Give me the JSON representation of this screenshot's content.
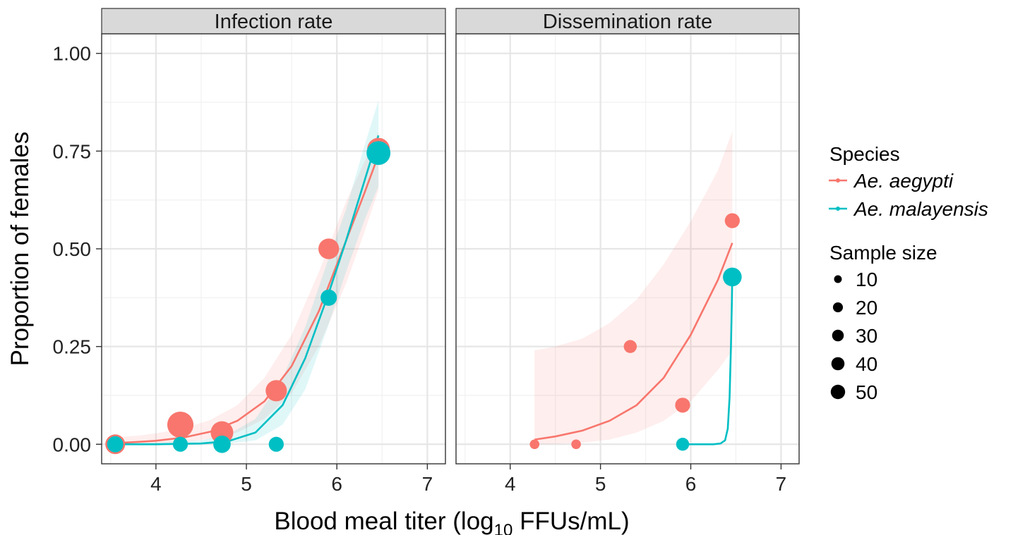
{
  "chart_data": {
    "type": "scatter",
    "xlabel_prefix": "Blood meal titer (log",
    "xlabel_sub": "10",
    "xlabel_suffix": " FFUs/mL)",
    "ylabel": "Proportion of females",
    "xlim": [
      3.4,
      7.2
    ],
    "ylim": [
      -0.05,
      1.05
    ],
    "x_ticks": [
      4,
      5,
      6,
      7
    ],
    "y_ticks": [
      0.0,
      0.25,
      0.5,
      0.75,
      1.0
    ],
    "x_tick_labels": [
      "4",
      "5",
      "6",
      "7"
    ],
    "y_tick_labels": [
      "0.00",
      "0.25",
      "0.50",
      "0.75",
      "1.00"
    ],
    "grid": true,
    "legend_position": "right",
    "legend": {
      "species_title": "Species",
      "species": [
        {
          "name": "Ae. aegypti",
          "color": "#F8766D"
        },
        {
          "name": "Ae. malayensis",
          "color": "#00BFC4"
        }
      ],
      "size_title": "Sample size",
      "sizes": [
        {
          "label": "10",
          "value": 10
        },
        {
          "label": "20",
          "value": 20
        },
        {
          "label": "30",
          "value": 30
        },
        {
          "label": "40",
          "value": 40
        },
        {
          "label": "50",
          "value": 50
        }
      ]
    },
    "panels": [
      {
        "title": "Infection rate",
        "series": [
          {
            "name": "Ae. aegypti",
            "color": "#F8766D",
            "points": [
              {
                "x": 3.55,
                "y": 0.0,
                "n": 25
              },
              {
                "x": 4.27,
                "y": 0.05,
                "n": 50
              },
              {
                "x": 4.73,
                "y": 0.03,
                "n": 35
              },
              {
                "x": 5.33,
                "y": 0.137,
                "n": 30
              },
              {
                "x": 5.91,
                "y": 0.5,
                "n": 28
              },
              {
                "x": 6.46,
                "y": 0.755,
                "n": 35
              }
            ],
            "fit": [
              [
                3.55,
                0.003
              ],
              [
                3.8,
                0.006
              ],
              [
                4.0,
                0.009
              ],
              [
                4.3,
                0.017
              ],
              [
                4.6,
                0.032
              ],
              [
                4.9,
                0.06
              ],
              [
                5.2,
                0.11
              ],
              [
                5.5,
                0.2
              ],
              [
                5.8,
                0.34
              ],
              [
                6.1,
                0.52
              ],
              [
                6.3,
                0.64
              ],
              [
                6.46,
                0.74
              ]
            ],
            "band_upper": [
              [
                3.55,
                0.018
              ],
              [
                3.8,
                0.022
              ],
              [
                4.0,
                0.028
              ],
              [
                4.3,
                0.04
              ],
              [
                4.6,
                0.062
              ],
              [
                4.9,
                0.1
              ],
              [
                5.2,
                0.17
              ],
              [
                5.5,
                0.28
              ],
              [
                5.8,
                0.44
              ],
              [
                6.1,
                0.62
              ],
              [
                6.3,
                0.72
              ],
              [
                6.46,
                0.8
              ]
            ],
            "band_lower": [
              [
                3.55,
                0.0
              ],
              [
                3.8,
                0.001
              ],
              [
                4.0,
                0.002
              ],
              [
                4.3,
                0.005
              ],
              [
                4.6,
                0.014
              ],
              [
                4.9,
                0.03
              ],
              [
                5.2,
                0.065
              ],
              [
                5.5,
                0.13
              ],
              [
                5.8,
                0.25
              ],
              [
                6.1,
                0.41
              ],
              [
                6.3,
                0.54
              ],
              [
                6.46,
                0.65
              ]
            ]
          },
          {
            "name": "Ae. malayensis",
            "color": "#00BFC4",
            "points": [
              {
                "x": 3.55,
                "y": 0.0,
                "n": 15
              },
              {
                "x": 4.27,
                "y": 0.0,
                "n": 12
              },
              {
                "x": 4.73,
                "y": 0.0,
                "n": 18
              },
              {
                "x": 5.33,
                "y": 0.0,
                "n": 12
              },
              {
                "x": 5.91,
                "y": 0.375,
                "n": 15
              },
              {
                "x": 6.46,
                "y": 0.745,
                "n": 40
              }
            ],
            "fit": [
              [
                3.55,
                0.0
              ],
              [
                4.0,
                0.0
              ],
              [
                4.5,
                0.002
              ],
              [
                4.8,
                0.008
              ],
              [
                5.1,
                0.03
              ],
              [
                5.4,
                0.1
              ],
              [
                5.65,
                0.22
              ],
              [
                5.9,
                0.38
              ],
              [
                6.1,
                0.52
              ],
              [
                6.3,
                0.67
              ],
              [
                6.46,
                0.79
              ]
            ],
            "band_upper": [
              [
                3.55,
                0.004
              ],
              [
                4.0,
                0.005
              ],
              [
                4.5,
                0.01
              ],
              [
                4.8,
                0.025
              ],
              [
                5.1,
                0.065
              ],
              [
                5.4,
                0.17
              ],
              [
                5.65,
                0.3
              ],
              [
                5.9,
                0.47
              ],
              [
                6.1,
                0.6
              ],
              [
                6.3,
                0.76
              ],
              [
                6.46,
                0.88
              ]
            ],
            "band_lower": [
              [
                3.55,
                0.0
              ],
              [
                4.0,
                0.0
              ],
              [
                4.5,
                0.0
              ],
              [
                4.8,
                0.002
              ],
              [
                5.1,
                0.01
              ],
              [
                5.4,
                0.05
              ],
              [
                5.65,
                0.14
              ],
              [
                5.9,
                0.3
              ],
              [
                6.1,
                0.44
              ],
              [
                6.3,
                0.57
              ],
              [
                6.46,
                0.66
              ]
            ]
          }
        ]
      },
      {
        "title": "Dissemination rate",
        "series": [
          {
            "name": "Ae. aegypti",
            "color": "#F8766D",
            "points": [
              {
                "x": 4.27,
                "y": 0.0,
                "n": 3
              },
              {
                "x": 4.73,
                "y": 0.0,
                "n": 3
              },
              {
                "x": 5.33,
                "y": 0.25,
                "n": 8
              },
              {
                "x": 5.91,
                "y": 0.1,
                "n": 12
              },
              {
                "x": 6.46,
                "y": 0.572,
                "n": 12
              }
            ],
            "fit": [
              [
                4.27,
                0.012
              ],
              [
                4.5,
                0.02
              ],
              [
                4.8,
                0.035
              ],
              [
                5.1,
                0.06
              ],
              [
                5.4,
                0.1
              ],
              [
                5.7,
                0.17
              ],
              [
                6.0,
                0.28
              ],
              [
                6.3,
                0.42
              ],
              [
                6.46,
                0.515
              ]
            ],
            "band_upper": [
              [
                4.27,
                0.24
              ],
              [
                4.5,
                0.25
              ],
              [
                4.8,
                0.27
              ],
              [
                5.1,
                0.31
              ],
              [
                5.4,
                0.37
              ],
              [
                5.7,
                0.46
              ],
              [
                6.0,
                0.57
              ],
              [
                6.3,
                0.7
              ],
              [
                6.46,
                0.8
              ]
            ],
            "band_lower": [
              [
                4.27,
                0.0
              ],
              [
                4.5,
                0.001
              ],
              [
                4.8,
                0.004
              ],
              [
                5.1,
                0.012
              ],
              [
                5.4,
                0.03
              ],
              [
                5.7,
                0.06
              ],
              [
                6.0,
                0.11
              ],
              [
                6.3,
                0.19
              ],
              [
                6.46,
                0.24
              ]
            ]
          },
          {
            "name": "Ae. malayensis",
            "color": "#00BFC4",
            "points": [
              {
                "x": 5.91,
                "y": 0.0,
                "n": 8
              },
              {
                "x": 6.46,
                "y": 0.428,
                "n": 22
              }
            ],
            "fit": [
              [
                5.91,
                0.0
              ],
              [
                6.1,
                0.0
              ],
              [
                6.25,
                0.0
              ],
              [
                6.33,
                0.002
              ],
              [
                6.38,
                0.01
              ],
              [
                6.41,
                0.04
              ],
              [
                6.43,
                0.12
              ],
              [
                6.445,
                0.25
              ],
              [
                6.455,
                0.36
              ],
              [
                6.46,
                0.43
              ]
            ]
          }
        ]
      }
    ]
  }
}
